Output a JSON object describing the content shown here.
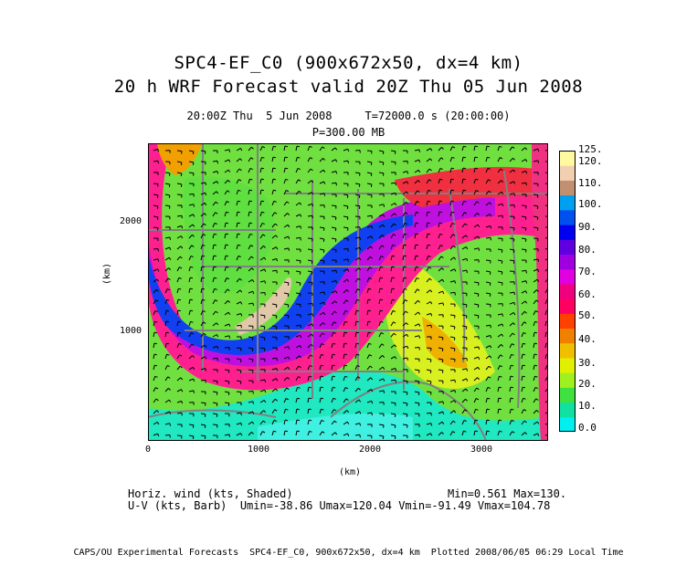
{
  "header": {
    "title_line1": "SPC4-EF_C0 (900x672x50, dx=4 km)",
    "title_line2": "20 h WRF Forecast valid 20Z Thu 05 Jun 2008",
    "time_line": "20:00Z Thu  5 Jun 2008     T=72000.0 s (20:00:00)",
    "pressure_line": "P=300.00 MB"
  },
  "map": {
    "xlabel": "(km)",
    "ylabel": "(km)",
    "xticks": [
      "0",
      "1000",
      "2000",
      "3000"
    ],
    "yticks": [
      "1000",
      "2000"
    ],
    "xlim": [
      0,
      3600
    ],
    "ylim": [
      0,
      2690
    ],
    "field": "Horizontal wind speed (kts) shaded, U-V barbs"
  },
  "colorbar": {
    "labels": [
      "0.0",
      "10.",
      "20.",
      "30.",
      "40.",
      "50.",
      "60.",
      "70.",
      "80.",
      "90.",
      "100.",
      "110.",
      "120.",
      "125."
    ],
    "colors": [
      "#00f0f0",
      "#10e0a0",
      "#40e040",
      "#a0f020",
      "#e0f000",
      "#f0c000",
      "#f08000",
      "#ff4000",
      "#ff0060",
      "#f00080",
      "#e000e0",
      "#a000e0",
      "#6000e0",
      "#0000f0",
      "#0050f0",
      "#00a0f0",
      "#c09070",
      "#f0d0b0",
      "#fffaa0"
    ]
  },
  "footer": {
    "field_line1": "Horiz. wind (kts, Shaded)",
    "minmax": "Min=0.561 Max=130.",
    "field_line2": "U-V (kts, Barb)  Umin=-38.86 Umax=120.04 Vmin=-91.49 Vmax=104.78",
    "credit": "CAPS/OU Experimental Forecasts  SPC4-EF_C0, 900x672x50, dx=4 km  Plotted 2008/06/05 06:29 Local Time"
  }
}
